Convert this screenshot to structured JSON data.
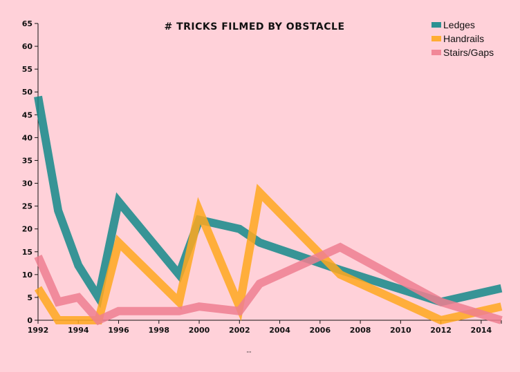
{
  "chart_data": {
    "type": "line",
    "title": "# TRICKS FILMED BY OBSTACLE",
    "xlabel": "",
    "ylabel": "",
    "xlim": [
      1992,
      2015
    ],
    "ylim": [
      0,
      65
    ],
    "x_ticks": [
      "1992",
      "1994",
      "1996",
      "1998",
      "2000",
      "2002",
      "2004",
      "2006",
      "2008",
      "2010",
      "2012",
      "2014"
    ],
    "y_ticks": [
      "0",
      "5",
      "10",
      "15",
      "20",
      "25",
      "30",
      "35",
      "40",
      "45",
      "50",
      "55",
      "60",
      "65"
    ],
    "grid": false,
    "legend_position": "top-right",
    "series": [
      {
        "name": "Ledges",
        "color": "#148a8a",
        "x": [
          1992,
          1993,
          1994,
          1995,
          1996,
          1999,
          2000,
          2002,
          2003,
          2007,
          2012,
          2015
        ],
        "y": [
          49,
          24,
          12,
          5,
          26,
          10,
          22,
          20,
          17,
          11,
          4,
          7
        ]
      },
      {
        "name": "Handrails",
        "color": "#ffa81f",
        "x": [
          1992,
          1993,
          1994,
          1995,
          1996,
          1999,
          2000,
          2002,
          2003,
          2007,
          2012,
          2015
        ],
        "y": [
          7,
          0,
          0,
          0,
          17,
          4,
          24,
          3,
          28,
          10,
          0,
          3
        ]
      },
      {
        "name": "Stairs/Gaps",
        "color": "#ef7f90",
        "x": [
          1992,
          1993,
          1994,
          1995,
          1996,
          1999,
          2000,
          2002,
          2003,
          2007,
          2012,
          2015
        ],
        "y": [
          14,
          4,
          5,
          0,
          2,
          2,
          3,
          2,
          8,
          16,
          4,
          0
        ]
      }
    ],
    "footer_mark": "\"\""
  }
}
